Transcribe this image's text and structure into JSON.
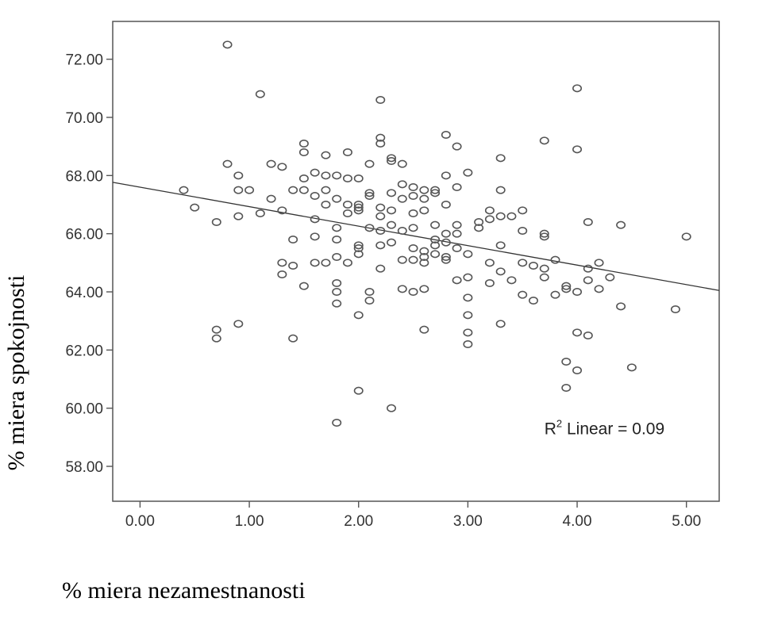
{
  "chart_data": {
    "type": "scatter",
    "xlabel": "% miera nezamestnanosti",
    "ylabel": "% miera spokojnosti",
    "xlim": [
      -0.25,
      5.3
    ],
    "ylim": [
      56.8,
      73.3
    ],
    "x_ticks": [
      "0.00",
      "1.00",
      "2.00",
      "3.00",
      "4.00",
      "5.00"
    ],
    "x_tick_values": [
      0,
      1,
      2,
      3,
      4,
      5
    ],
    "y_ticks": [
      "58.00",
      "60.00",
      "62.00",
      "64.00",
      "66.00",
      "68.00",
      "70.00",
      "72.00"
    ],
    "y_tick_values": [
      58,
      60,
      62,
      64,
      66,
      68,
      70,
      72
    ],
    "fit_line": {
      "type": "linear",
      "intercept": 67.6,
      "slope": -0.67
    },
    "annotation": {
      "r_label": "R",
      "r_sup": "2",
      "text": " Linear = 0.09",
      "x": 3.7,
      "y": 59.1
    },
    "grid": false,
    "points": [
      [
        0.8,
        72.5
      ],
      [
        1.1,
        70.8
      ],
      [
        2.2,
        70.6
      ],
      [
        4.0,
        71.0
      ],
      [
        2.2,
        69.3
      ],
      [
        2.2,
        69.1
      ],
      [
        2.8,
        69.4
      ],
      [
        2.9,
        69.0
      ],
      [
        3.7,
        69.2
      ],
      [
        4.0,
        68.9
      ],
      [
        1.5,
        69.1
      ],
      [
        1.5,
        68.8
      ],
      [
        1.7,
        68.7
      ],
      [
        1.9,
        68.8
      ],
      [
        2.3,
        68.5
      ],
      [
        2.3,
        68.6
      ],
      [
        2.4,
        68.4
      ],
      [
        3.3,
        68.6
      ],
      [
        0.8,
        68.4
      ],
      [
        1.2,
        68.4
      ],
      [
        1.3,
        68.3
      ],
      [
        0.9,
        68.0
      ],
      [
        1.6,
        68.1
      ],
      [
        1.7,
        68.0
      ],
      [
        1.8,
        68.0
      ],
      [
        1.9,
        67.9
      ],
      [
        2.0,
        67.9
      ],
      [
        2.1,
        68.4
      ],
      [
        2.8,
        68.0
      ],
      [
        3.0,
        68.1
      ],
      [
        1.5,
        67.9
      ],
      [
        2.4,
        67.7
      ],
      [
        2.5,
        67.6
      ],
      [
        2.6,
        67.5
      ],
      [
        2.7,
        67.4
      ],
      [
        2.9,
        67.6
      ],
      [
        3.3,
        67.5
      ],
      [
        0.4,
        67.5
      ],
      [
        0.9,
        67.5
      ],
      [
        1.0,
        67.5
      ],
      [
        1.4,
        67.5
      ],
      [
        1.5,
        67.5
      ],
      [
        1.6,
        67.3
      ],
      [
        1.7,
        67.5
      ],
      [
        1.8,
        67.2
      ],
      [
        2.1,
        67.4
      ],
      [
        2.1,
        67.3
      ],
      [
        2.3,
        67.4
      ],
      [
        2.4,
        67.2
      ],
      [
        2.5,
        67.3
      ],
      [
        2.6,
        67.2
      ],
      [
        2.7,
        67.5
      ],
      [
        1.2,
        67.2
      ],
      [
        1.9,
        67.0
      ],
      [
        2.0,
        67.0
      ],
      [
        2.0,
        66.9
      ],
      [
        2.0,
        66.8
      ],
      [
        2.2,
        66.9
      ],
      [
        2.3,
        66.8
      ],
      [
        2.5,
        66.7
      ],
      [
        2.6,
        66.8
      ],
      [
        2.8,
        67.0
      ],
      [
        0.5,
        66.9
      ],
      [
        1.3,
        66.8
      ],
      [
        1.7,
        67.0
      ],
      [
        1.9,
        66.7
      ],
      [
        0.9,
        66.6
      ],
      [
        1.1,
        66.7
      ],
      [
        0.7,
        66.4
      ],
      [
        1.6,
        66.5
      ],
      [
        2.2,
        66.6
      ],
      [
        2.3,
        66.3
      ],
      [
        2.5,
        66.2
      ],
      [
        2.7,
        66.3
      ],
      [
        2.9,
        66.3
      ],
      [
        3.1,
        66.4
      ],
      [
        3.2,
        66.8
      ],
      [
        3.2,
        66.5
      ],
      [
        3.3,
        66.6
      ],
      [
        3.4,
        66.6
      ],
      [
        3.5,
        66.8
      ],
      [
        4.1,
        66.4
      ],
      [
        4.4,
        66.3
      ],
      [
        1.8,
        66.2
      ],
      [
        2.1,
        66.2
      ],
      [
        2.2,
        66.1
      ],
      [
        2.4,
        66.1
      ],
      [
        2.8,
        66.0
      ],
      [
        2.9,
        66.0
      ],
      [
        3.1,
        66.2
      ],
      [
        3.5,
        66.1
      ],
      [
        3.7,
        66.0
      ],
      [
        3.7,
        65.9
      ],
      [
        1.4,
        65.8
      ],
      [
        1.6,
        65.9
      ],
      [
        1.8,
        65.8
      ],
      [
        2.0,
        65.6
      ],
      [
        2.0,
        65.5
      ],
      [
        2.2,
        65.6
      ],
      [
        2.3,
        65.7
      ],
      [
        2.5,
        65.5
      ],
      [
        2.6,
        65.4
      ],
      [
        2.7,
        65.8
      ],
      [
        2.7,
        65.6
      ],
      [
        2.8,
        65.7
      ],
      [
        2.9,
        65.5
      ],
      [
        3.3,
        65.6
      ],
      [
        5.0,
        65.9
      ],
      [
        2.0,
        65.3
      ],
      [
        2.6,
        65.2
      ],
      [
        2.7,
        65.3
      ],
      [
        2.8,
        65.2
      ],
      [
        2.8,
        65.1
      ],
      [
        3.0,
        65.3
      ],
      [
        1.3,
        65.0
      ],
      [
        1.4,
        64.9
      ],
      [
        1.6,
        65.0
      ],
      [
        1.7,
        65.0
      ],
      [
        1.8,
        65.2
      ],
      [
        1.9,
        65.0
      ],
      [
        2.2,
        64.8
      ],
      [
        2.4,
        65.1
      ],
      [
        2.5,
        65.1
      ],
      [
        2.6,
        65.0
      ],
      [
        3.2,
        65.0
      ],
      [
        3.5,
        65.0
      ],
      [
        3.6,
        64.9
      ],
      [
        3.7,
        64.8
      ],
      [
        3.8,
        65.1
      ],
      [
        4.1,
        64.8
      ],
      [
        4.2,
        65.0
      ],
      [
        1.3,
        64.6
      ],
      [
        1.5,
        64.2
      ],
      [
        1.8,
        64.3
      ],
      [
        1.8,
        64.0
      ],
      [
        2.1,
        64.0
      ],
      [
        2.4,
        64.1
      ],
      [
        2.5,
        64.0
      ],
      [
        2.6,
        64.1
      ],
      [
        2.9,
        64.4
      ],
      [
        3.0,
        64.5
      ],
      [
        3.2,
        64.3
      ],
      [
        3.3,
        64.7
      ],
      [
        3.4,
        64.4
      ],
      [
        3.7,
        64.5
      ],
      [
        3.9,
        64.2
      ],
      [
        3.9,
        64.1
      ],
      [
        4.0,
        64.0
      ],
      [
        4.1,
        64.4
      ],
      [
        4.2,
        64.1
      ],
      [
        4.3,
        64.5
      ],
      [
        3.8,
        63.9
      ],
      [
        3.5,
        63.9
      ],
      [
        3.6,
        63.7
      ],
      [
        1.8,
        63.6
      ],
      [
        2.1,
        63.7
      ],
      [
        3.0,
        63.8
      ],
      [
        4.4,
        63.5
      ],
      [
        4.9,
        63.4
      ],
      [
        2.0,
        63.2
      ],
      [
        3.0,
        63.2
      ],
      [
        0.9,
        62.9
      ],
      [
        3.3,
        62.9
      ],
      [
        0.7,
        62.7
      ],
      [
        0.7,
        62.4
      ],
      [
        1.4,
        62.4
      ],
      [
        2.6,
        62.7
      ],
      [
        3.0,
        62.6
      ],
      [
        3.0,
        62.2
      ],
      [
        4.0,
        62.6
      ],
      [
        4.1,
        62.5
      ],
      [
        3.9,
        61.6
      ],
      [
        4.0,
        61.3
      ],
      [
        4.5,
        61.4
      ],
      [
        3.9,
        60.7
      ],
      [
        2.0,
        60.6
      ],
      [
        2.3,
        60.0
      ],
      [
        1.8,
        59.5
      ]
    ]
  }
}
